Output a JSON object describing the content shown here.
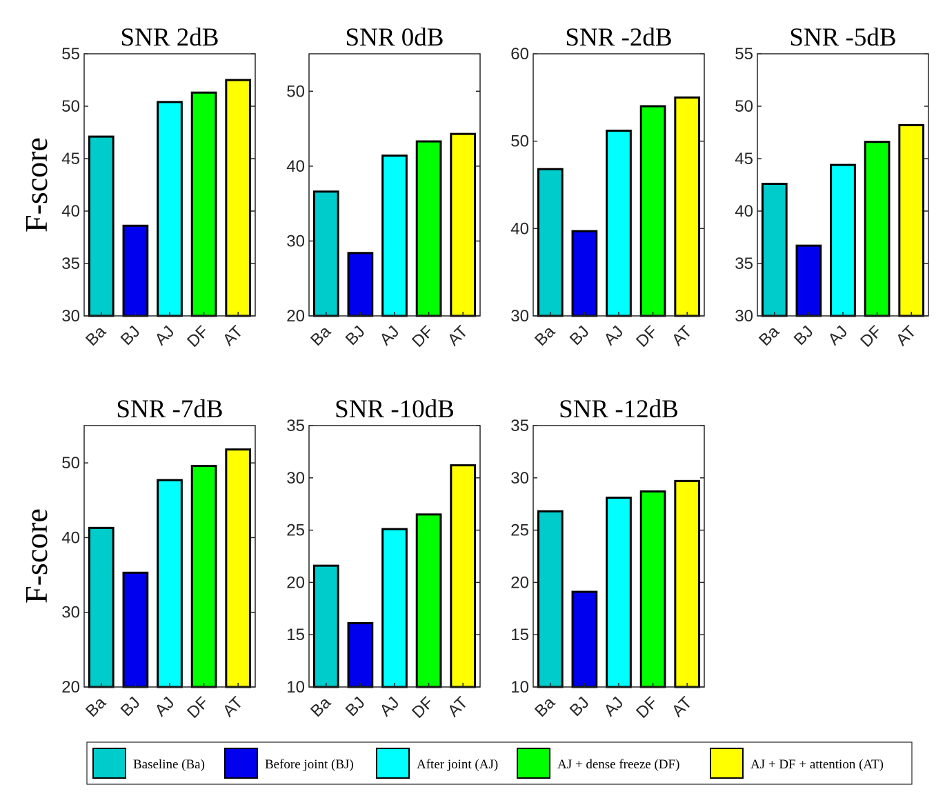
{
  "chart_data": {
    "type": "bar",
    "ylabel": "F-score",
    "categories": [
      "Ba",
      "BJ",
      "AJ",
      "DF",
      "AT"
    ],
    "colors": [
      "#00CCCC",
      "#0000EE",
      "#00FFFF",
      "#00FF00",
      "#FFFF00"
    ],
    "legend": [
      {
        "label": "Baseline (Ba)",
        "color": "#00CCCC"
      },
      {
        "label": "Before joint (BJ)",
        "color": "#0000EE"
      },
      {
        "label": "After joint (AJ)",
        "color": "#00FFFF"
      },
      {
        "label": "AJ + dense freeze (DF)",
        "color": "#00FF00"
      },
      {
        "label": "AJ + DF + attention (AT)",
        "color": "#FFFF00"
      }
    ],
    "panels": [
      {
        "title": "SNR 2dB",
        "ylim": [
          30,
          55
        ],
        "yticks": [
          30,
          35,
          40,
          45,
          50,
          55
        ],
        "values": [
          47.1,
          38.6,
          50.4,
          51.3,
          52.5
        ]
      },
      {
        "title": "SNR 0dB",
        "ylim": [
          20,
          55
        ],
        "yticks": [
          20,
          30,
          40,
          50
        ],
        "values": [
          36.6,
          28.4,
          41.4,
          43.3,
          44.3
        ]
      },
      {
        "title": "SNR -2dB",
        "ylim": [
          30,
          60
        ],
        "yticks": [
          30,
          40,
          50,
          60
        ],
        "values": [
          46.8,
          39.7,
          51.2,
          54.0,
          55.0
        ]
      },
      {
        "title": "SNR -5dB",
        "ylim": [
          30,
          55
        ],
        "yticks": [
          30,
          35,
          40,
          45,
          50,
          55
        ],
        "values": [
          42.6,
          36.7,
          44.4,
          46.6,
          48.2
        ]
      },
      {
        "title": "SNR -7dB",
        "ylim": [
          20,
          55
        ],
        "yticks": [
          20,
          30,
          40,
          50
        ],
        "values": [
          41.3,
          35.3,
          47.7,
          49.6,
          51.8
        ]
      },
      {
        "title": "SNR -10dB",
        "ylim": [
          10,
          35
        ],
        "yticks": [
          10,
          15,
          20,
          25,
          30,
          35
        ],
        "values": [
          21.6,
          16.1,
          25.1,
          26.5,
          31.2
        ]
      },
      {
        "title": "SNR -12dB",
        "ylim": [
          10,
          35
        ],
        "yticks": [
          10,
          15,
          20,
          25,
          30,
          35
        ],
        "values": [
          26.8,
          19.1,
          28.1,
          28.7,
          29.7
        ]
      }
    ]
  }
}
